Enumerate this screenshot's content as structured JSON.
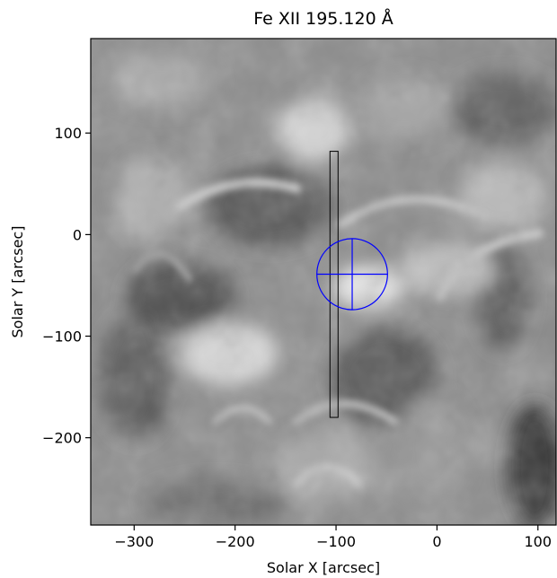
{
  "chart_data": {
    "type": "image",
    "title": "Fe XII 195.120 Å",
    "xlabel": "Solar X [arcsec]",
    "ylabel": "Solar Y [arcsec]",
    "xlim": [
      -343,
      118
    ],
    "ylim": [
      -286,
      193
    ],
    "x_ticks": [
      {
        "value": -300,
        "label": "−300"
      },
      {
        "value": -200,
        "label": "−200"
      },
      {
        "value": -100,
        "label": "−100"
      },
      {
        "value": 0,
        "label": "0"
      },
      {
        "value": 100,
        "label": "100"
      }
    ],
    "y_ticks": [
      {
        "value": 100,
        "label": "100"
      },
      {
        "value": 0,
        "label": "0"
      },
      {
        "value": -100,
        "label": "−100"
      },
      {
        "value": -200,
        "label": "−200"
      }
    ],
    "colormap": "grayscale",
    "overlays": {
      "slit_rectangle": {
        "x_min": -106,
        "x_max": -98,
        "y_min": -180,
        "y_max": 82,
        "color": "#000000"
      },
      "target_circle": {
        "center_x": -84,
        "center_y": -39,
        "radius": 35,
        "color": "#0000ff"
      }
    }
  }
}
